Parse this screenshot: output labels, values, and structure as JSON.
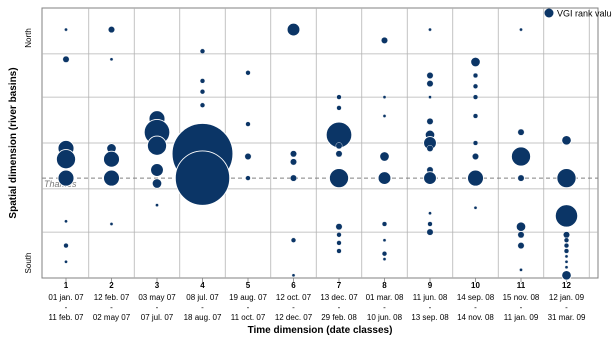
{
  "chart_data": {
    "type": "scatter",
    "subtype": "bubble",
    "xlabel": "Time dimension (date classes)",
    "ylabel": "Spatial dimension (river basins)",
    "y_top_label": "North",
    "y_bottom_label": "South",
    "reference_line": {
      "label": "Thames",
      "y": 0.63
    },
    "legend": {
      "label": "VGI rank value",
      "position": "top-right"
    },
    "grid": true,
    "color": "#0b3566",
    "x_classes": [
      {
        "num": "1",
        "start": "01 jan. 07",
        "end": "11 feb. 07"
      },
      {
        "num": "2",
        "start": "12 feb. 07",
        "end": "02 may 07"
      },
      {
        "num": "3",
        "start": "03 may 07",
        "end": "07 jul. 07"
      },
      {
        "num": "4",
        "start": "08 jul. 07",
        "end": "18 aug. 07"
      },
      {
        "num": "5",
        "start": "19 aug. 07",
        "end": "11 oct. 07"
      },
      {
        "num": "6",
        "start": "12 oct. 07",
        "end": "12 dec. 07"
      },
      {
        "num": "7",
        "start": "13 dec. 07",
        "end": "29 feb. 08"
      },
      {
        "num": "8",
        "start": "01 mar. 08",
        "end": "10 jun. 08"
      },
      {
        "num": "9",
        "start": "11 jun. 08",
        "end": "13 sep. 08"
      },
      {
        "num": "10",
        "start": "14 sep. 08",
        "end": "14 nov. 08"
      },
      {
        "num": "11",
        "start": "15 nov. 08",
        "end": "11 jan. 09"
      },
      {
        "num": "12",
        "start": "12 jan. 09",
        "end": "31 mar. 09"
      }
    ],
    "bubbles": [
      {
        "x": 1,
        "y": 0.08,
        "v": 1
      },
      {
        "x": 1,
        "y": 0.19,
        "v": 2
      },
      {
        "x": 1,
        "y": 0.52,
        "v": 5
      },
      {
        "x": 1,
        "y": 0.56,
        "v": 6
      },
      {
        "x": 1,
        "y": 0.63,
        "v": 5
      },
      {
        "x": 1,
        "y": 0.79,
        "v": 1
      },
      {
        "x": 1,
        "y": 0.88,
        "v": 1.5
      },
      {
        "x": 1,
        "y": 0.94,
        "v": 1
      },
      {
        "x": 2,
        "y": 0.08,
        "v": 2
      },
      {
        "x": 2,
        "y": 0.19,
        "v": 1
      },
      {
        "x": 2,
        "y": 0.52,
        "v": 3
      },
      {
        "x": 2,
        "y": 0.56,
        "v": 5
      },
      {
        "x": 2,
        "y": 0.63,
        "v": 5
      },
      {
        "x": 2,
        "y": 0.8,
        "v": 1
      },
      {
        "x": 3,
        "y": 0.41,
        "v": 5
      },
      {
        "x": 3,
        "y": 0.46,
        "v": 8
      },
      {
        "x": 3,
        "y": 0.51,
        "v": 6
      },
      {
        "x": 3,
        "y": 0.6,
        "v": 4
      },
      {
        "x": 3,
        "y": 0.65,
        "v": 3
      },
      {
        "x": 3,
        "y": 0.73,
        "v": 1
      },
      {
        "x": 4,
        "y": 0.16,
        "v": 1.5
      },
      {
        "x": 4,
        "y": 0.27,
        "v": 1.5
      },
      {
        "x": 4,
        "y": 0.31,
        "v": 1.5
      },
      {
        "x": 4,
        "y": 0.36,
        "v": 1.5
      },
      {
        "x": 4,
        "y": 0.54,
        "v": 19
      },
      {
        "x": 4,
        "y": 0.63,
        "v": 17
      },
      {
        "x": 5,
        "y": 0.24,
        "v": 1.5
      },
      {
        "x": 5,
        "y": 0.43,
        "v": 1.5
      },
      {
        "x": 5,
        "y": 0.55,
        "v": 2
      },
      {
        "x": 5,
        "y": 0.63,
        "v": 1.5
      },
      {
        "x": 6,
        "y": 0.08,
        "v": 4
      },
      {
        "x": 6,
        "y": 0.54,
        "v": 2
      },
      {
        "x": 6,
        "y": 0.57,
        "v": 2
      },
      {
        "x": 6,
        "y": 0.63,
        "v": 2
      },
      {
        "x": 6,
        "y": 0.86,
        "v": 1.5
      },
      {
        "x": 6,
        "y": 0.99,
        "v": 1
      },
      {
        "x": 7,
        "y": 0.33,
        "v": 1.5
      },
      {
        "x": 7,
        "y": 0.37,
        "v": 1.5
      },
      {
        "x": 7,
        "y": 0.47,
        "v": 8
      },
      {
        "x": 7,
        "y": 0.51,
        "v": 2
      },
      {
        "x": 7,
        "y": 0.54,
        "v": 2
      },
      {
        "x": 7,
        "y": 0.63,
        "v": 6
      },
      {
        "x": 7,
        "y": 0.81,
        "v": 2
      },
      {
        "x": 7,
        "y": 0.84,
        "v": 1.5
      },
      {
        "x": 7,
        "y": 0.87,
        "v": 1.5
      },
      {
        "x": 7,
        "y": 0.9,
        "v": 1.5
      },
      {
        "x": 8,
        "y": 0.12,
        "v": 2
      },
      {
        "x": 8,
        "y": 0.33,
        "v": 1
      },
      {
        "x": 8,
        "y": 0.4,
        "v": 1
      },
      {
        "x": 8,
        "y": 0.55,
        "v": 3
      },
      {
        "x": 8,
        "y": 0.63,
        "v": 4
      },
      {
        "x": 8,
        "y": 0.8,
        "v": 1.5
      },
      {
        "x": 8,
        "y": 0.86,
        "v": 1
      },
      {
        "x": 8,
        "y": 0.91,
        "v": 1.5
      },
      {
        "x": 8,
        "y": 0.93,
        "v": 1
      },
      {
        "x": 9,
        "y": 0.08,
        "v": 1
      },
      {
        "x": 9,
        "y": 0.25,
        "v": 2
      },
      {
        "x": 9,
        "y": 0.28,
        "v": 2
      },
      {
        "x": 9,
        "y": 0.33,
        "v": 1
      },
      {
        "x": 9,
        "y": 0.42,
        "v": 2
      },
      {
        "x": 9,
        "y": 0.47,
        "v": 3
      },
      {
        "x": 9,
        "y": 0.5,
        "v": 4
      },
      {
        "x": 9,
        "y": 0.52,
        "v": 2
      },
      {
        "x": 9,
        "y": 0.6,
        "v": 2
      },
      {
        "x": 9,
        "y": 0.63,
        "v": 4
      },
      {
        "x": 9,
        "y": 0.76,
        "v": 1
      },
      {
        "x": 9,
        "y": 0.8,
        "v": 1.5
      },
      {
        "x": 9,
        "y": 0.83,
        "v": 2
      },
      {
        "x": 10,
        "y": 0.2,
        "v": 3
      },
      {
        "x": 10,
        "y": 0.25,
        "v": 1.5
      },
      {
        "x": 10,
        "y": 0.29,
        "v": 1.5
      },
      {
        "x": 10,
        "y": 0.33,
        "v": 1.5
      },
      {
        "x": 10,
        "y": 0.4,
        "v": 1.5
      },
      {
        "x": 10,
        "y": 0.5,
        "v": 1.5
      },
      {
        "x": 10,
        "y": 0.55,
        "v": 2
      },
      {
        "x": 10,
        "y": 0.63,
        "v": 5
      },
      {
        "x": 10,
        "y": 0.74,
        "v": 1
      },
      {
        "x": 11,
        "y": 0.08,
        "v": 1
      },
      {
        "x": 11,
        "y": 0.46,
        "v": 2
      },
      {
        "x": 11,
        "y": 0.55,
        "v": 6
      },
      {
        "x": 11,
        "y": 0.63,
        "v": 2
      },
      {
        "x": 11,
        "y": 0.81,
        "v": 3
      },
      {
        "x": 11,
        "y": 0.84,
        "v": 2
      },
      {
        "x": 11,
        "y": 0.88,
        "v": 2
      },
      {
        "x": 11,
        "y": 0.97,
        "v": 1
      },
      {
        "x": 12,
        "y": 0.49,
        "v": 3
      },
      {
        "x": 12,
        "y": 0.63,
        "v": 6
      },
      {
        "x": 12,
        "y": 0.77,
        "v": 7
      },
      {
        "x": 12,
        "y": 0.84,
        "v": 2
      },
      {
        "x": 12,
        "y": 0.86,
        "v": 1.5
      },
      {
        "x": 12,
        "y": 0.88,
        "v": 1.5
      },
      {
        "x": 12,
        "y": 0.9,
        "v": 1.5
      },
      {
        "x": 12,
        "y": 0.92,
        "v": 1
      },
      {
        "x": 12,
        "y": 0.94,
        "v": 1
      },
      {
        "x": 12,
        "y": 0.96,
        "v": 1
      },
      {
        "x": 12,
        "y": 0.99,
        "v": 3
      }
    ]
  }
}
